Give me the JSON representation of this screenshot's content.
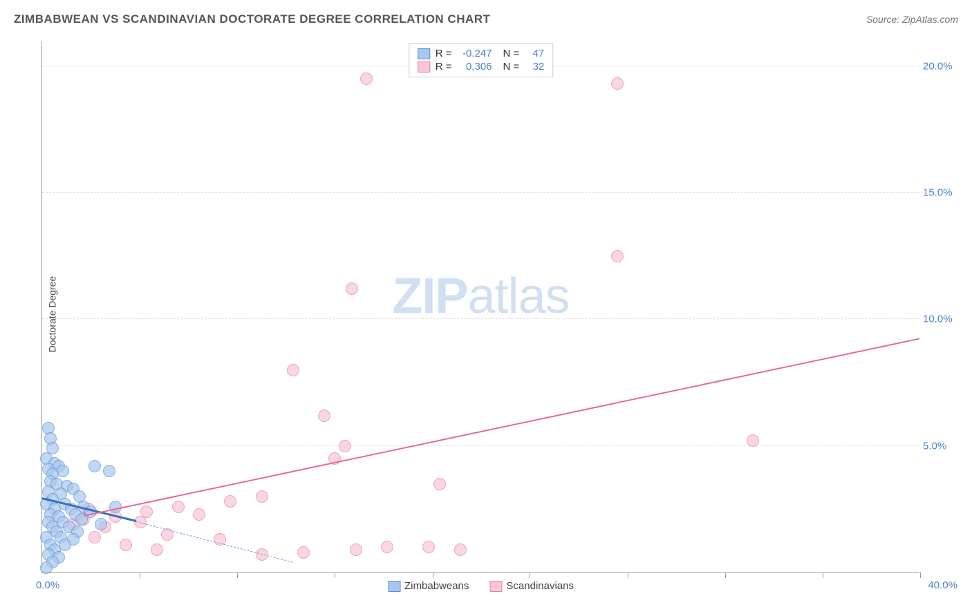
{
  "title": "ZIMBABWEAN VS SCANDINAVIAN DOCTORATE DEGREE CORRELATION CHART",
  "source_label": "Source: ZipAtlas.com",
  "ylabel": "Doctorate Degree",
  "watermark_bold": "ZIP",
  "watermark_light": "atlas",
  "chart": {
    "type": "scatter",
    "xlim": [
      0,
      42
    ],
    "ylim": [
      0,
      21
    ],
    "background_color": "#ffffff",
    "grid_color": "#dddddd",
    "axis_color": "#999999",
    "tick_color": "#4a7fc9",
    "title_fontsize": 17,
    "label_fontsize": 14,
    "tick_fontsize": 15,
    "y_ticks": [
      5,
      10,
      15,
      20
    ],
    "y_tick_labels": [
      "5.0%",
      "10.0%",
      "15.0%",
      "20.0%"
    ],
    "x_origin_label": "0.0%",
    "x_end_label": "40.0%",
    "x_tick_positions": [
      4.67,
      9.33,
      14,
      18.67,
      23.33,
      28,
      32.67,
      37.33,
      42
    ],
    "marker_radius": 9,
    "marker_stroke_width": 1.5,
    "marker_fill_opacity": 0.25,
    "series": {
      "zimbabweans": {
        "label": "Zimbabweans",
        "fill_color": "#a8c7ed",
        "stroke_color": "#5b8fd6",
        "r_value": "-0.247",
        "n_value": "47",
        "trend": {
          "x1": 0,
          "y1": 2.9,
          "x2": 4.5,
          "y2": 2.0,
          "solid": true,
          "color": "#3b6fb8",
          "width": 2.5
        },
        "trend_ext": {
          "x1": 4.5,
          "y1": 2.0,
          "x2": 12,
          "y2": 0.4,
          "color": "#6b9fd8"
        },
        "points": [
          [
            0.3,
            5.7
          ],
          [
            0.4,
            5.3
          ],
          [
            0.5,
            4.9
          ],
          [
            0.2,
            4.5
          ],
          [
            0.6,
            4.3
          ],
          [
            0.3,
            4.1
          ],
          [
            0.8,
            4.2
          ],
          [
            0.5,
            3.9
          ],
          [
            1.0,
            4.0
          ],
          [
            0.4,
            3.6
          ],
          [
            0.7,
            3.5
          ],
          [
            1.2,
            3.4
          ],
          [
            0.3,
            3.2
          ],
          [
            0.9,
            3.1
          ],
          [
            1.5,
            3.3
          ],
          [
            0.5,
            2.9
          ],
          [
            1.8,
            3.0
          ],
          [
            0.2,
            2.7
          ],
          [
            1.1,
            2.7
          ],
          [
            2.5,
            4.2
          ],
          [
            0.6,
            2.5
          ],
          [
            1.4,
            2.5
          ],
          [
            2.0,
            2.6
          ],
          [
            0.4,
            2.3
          ],
          [
            3.2,
            4.0
          ],
          [
            0.8,
            2.2
          ],
          [
            1.6,
            2.3
          ],
          [
            2.3,
            2.4
          ],
          [
            3.5,
            2.6
          ],
          [
            0.3,
            2.0
          ],
          [
            1.0,
            2.0
          ],
          [
            1.9,
            2.1
          ],
          [
            0.5,
            1.8
          ],
          [
            1.3,
            1.8
          ],
          [
            2.8,
            1.9
          ],
          [
            0.7,
            1.6
          ],
          [
            1.7,
            1.6
          ],
          [
            0.2,
            1.4
          ],
          [
            0.9,
            1.4
          ],
          [
            1.5,
            1.3
          ],
          [
            0.4,
            1.1
          ],
          [
            1.1,
            1.1
          ],
          [
            0.6,
            0.9
          ],
          [
            0.3,
            0.7
          ],
          [
            0.8,
            0.6
          ],
          [
            0.5,
            0.4
          ],
          [
            0.2,
            0.2
          ]
        ]
      },
      "scandinavians": {
        "label": "Scandinavians",
        "fill_color": "#f7c5d5",
        "stroke_color": "#e97ba3",
        "r_value": "0.306",
        "n_value": "32",
        "trend": {
          "x1": 2,
          "y1": 2.2,
          "x2": 42,
          "y2": 9.2,
          "solid": true,
          "color": "#e86894",
          "width": 2
        },
        "points": [
          [
            15.5,
            19.5
          ],
          [
            27.5,
            19.3
          ],
          [
            14.8,
            11.2
          ],
          [
            12.0,
            8.0
          ],
          [
            13.5,
            6.2
          ],
          [
            14.5,
            5.0
          ],
          [
            27.5,
            12.5
          ],
          [
            34.0,
            5.2
          ],
          [
            19.0,
            3.5
          ],
          [
            14.0,
            4.5
          ],
          [
            10.5,
            3.0
          ],
          [
            9.0,
            2.8
          ],
          [
            6.5,
            2.6
          ],
          [
            5.0,
            2.4
          ],
          [
            3.5,
            2.2
          ],
          [
            2.0,
            2.1
          ],
          [
            4.7,
            2.0
          ],
          [
            7.5,
            2.3
          ],
          [
            10.5,
            0.7
          ],
          [
            12.5,
            0.8
          ],
          [
            15.0,
            0.9
          ],
          [
            16.5,
            1.0
          ],
          [
            18.5,
            1.0
          ],
          [
            20.0,
            0.9
          ],
          [
            8.5,
            1.3
          ],
          [
            6.0,
            1.5
          ],
          [
            3.0,
            1.8
          ],
          [
            2.5,
            1.4
          ],
          [
            4.0,
            1.1
          ],
          [
            5.5,
            0.9
          ],
          [
            1.5,
            1.9
          ],
          [
            2.2,
            2.5
          ]
        ]
      }
    },
    "legend_top_r_label": "R =",
    "legend_top_n_label": "N ="
  }
}
